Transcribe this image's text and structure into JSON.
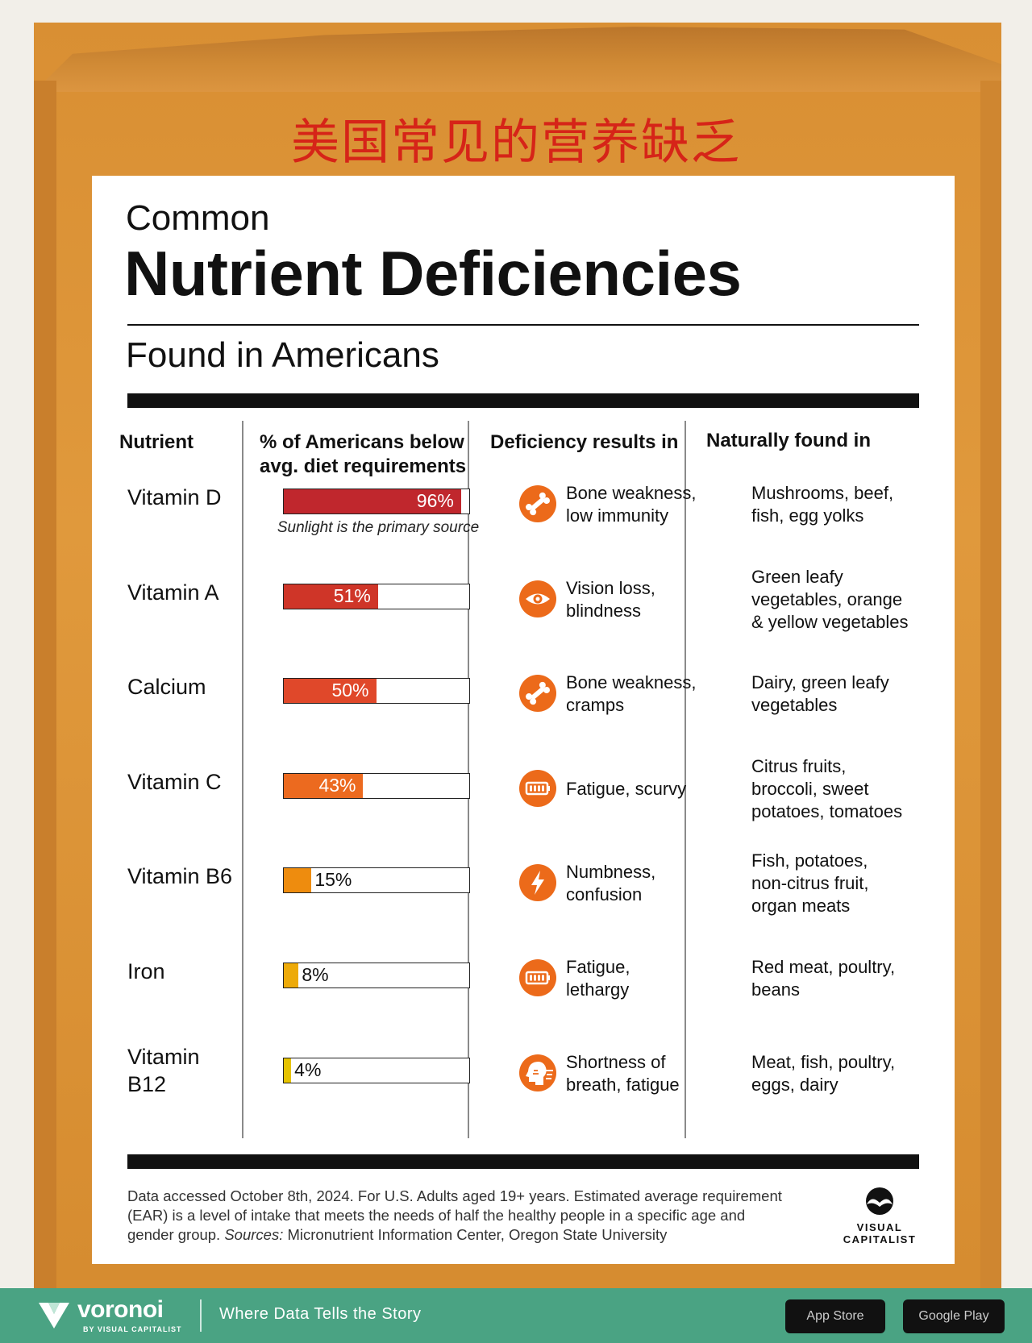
{
  "overlay_title": "美国常见的营养缺乏",
  "title_line1": "Common",
  "title_line2": "Nutrient Deficiencies",
  "subtitle": "Found in Americans",
  "headers": {
    "nutrient": "Nutrient",
    "percent_line1": "% of Americans below",
    "percent_line2": "avg. diet requirements",
    "deficiency": "Deficiency results in",
    "found": "Naturally found in"
  },
  "chart_data": {
    "type": "bar",
    "orientation": "horizontal",
    "xlim": [
      0,
      100
    ],
    "categories": [
      "Vitamin D",
      "Vitamin A",
      "Calcium",
      "Vitamin C",
      "Vitamin B6",
      "Iron",
      "Vitamin B12"
    ],
    "values": [
      96,
      51,
      50,
      43,
      15,
      8,
      4
    ],
    "value_labels": [
      "96%",
      "51%",
      "50%",
      "43%",
      "15%",
      "8%",
      "4%"
    ],
    "colors": [
      "#c0272d",
      "#cf3528",
      "#e0482a",
      "#ec6a1f",
      "#ee8c0e",
      "#edaa09",
      "#e6c300"
    ],
    "annotations": [
      {
        "category": "Vitamin D",
        "text": "Sunlight is the primary source"
      }
    ]
  },
  "rows": [
    {
      "nutrient": [
        "Vitamin D"
      ],
      "icon": "bone-icon",
      "effect": [
        "Bone weakness,",
        "low immunity"
      ],
      "found": [
        "Mushrooms, beef,",
        "fish, egg yolks"
      ]
    },
    {
      "nutrient": [
        "Vitamin A"
      ],
      "icon": "eye-icon",
      "effect": [
        "Vision loss,",
        "blindness"
      ],
      "found": [
        "Green leafy",
        "vegetables, orange",
        "& yellow vegetables"
      ]
    },
    {
      "nutrient": [
        "Calcium"
      ],
      "icon": "bone-icon",
      "effect": [
        "Bone weakness,",
        "cramps"
      ],
      "found": [
        "Dairy, green leafy",
        "vegetables"
      ]
    },
    {
      "nutrient": [
        "Vitamin C"
      ],
      "icon": "battery-icon",
      "effect": [
        "Fatigue, scurvy"
      ],
      "found": [
        "Citrus fruits,",
        "broccoli, sweet",
        "potatoes, tomatoes"
      ]
    },
    {
      "nutrient": [
        "Vitamin B6"
      ],
      "icon": "lightning-icon",
      "effect": [
        "Numbness,",
        "confusion"
      ],
      "found": [
        "Fish, potatoes,",
        "non-citrus fruit,",
        "organ meats"
      ]
    },
    {
      "nutrient": [
        "Iron"
      ],
      "icon": "battery-icon",
      "effect": [
        "Fatigue,",
        "lethargy"
      ],
      "found": [
        "Red meat, poultry,",
        "beans"
      ]
    },
    {
      "nutrient": [
        "Vitamin",
        "B12"
      ],
      "icon": "breath-icon",
      "effect": [
        "Shortness of",
        "breath, fatigue"
      ],
      "found": [
        "Meat, fish, poultry,",
        "eggs, dairy"
      ]
    }
  ],
  "footnote": {
    "line1": "Data accessed October 8th, 2024. For U.S. Adults aged 19+ years. Estimated average requirement",
    "line2": "(EAR) is a level of intake that meets the needs of half the healthy people in a specific age and",
    "line3_plain": "gender group. ",
    "line3_italic": "Sources:",
    "line3_rest": " Micronutrient Information Center, Oregon State University"
  },
  "logo": {
    "line1": "VISUAL",
    "line2": "CAPITALIST"
  },
  "banner": {
    "brand": "voronoi",
    "by": "BY VISUAL CAPITALIST",
    "tagline": "Where Data Tells the Story",
    "app_store": "App Store",
    "google_play": "Google Play"
  }
}
